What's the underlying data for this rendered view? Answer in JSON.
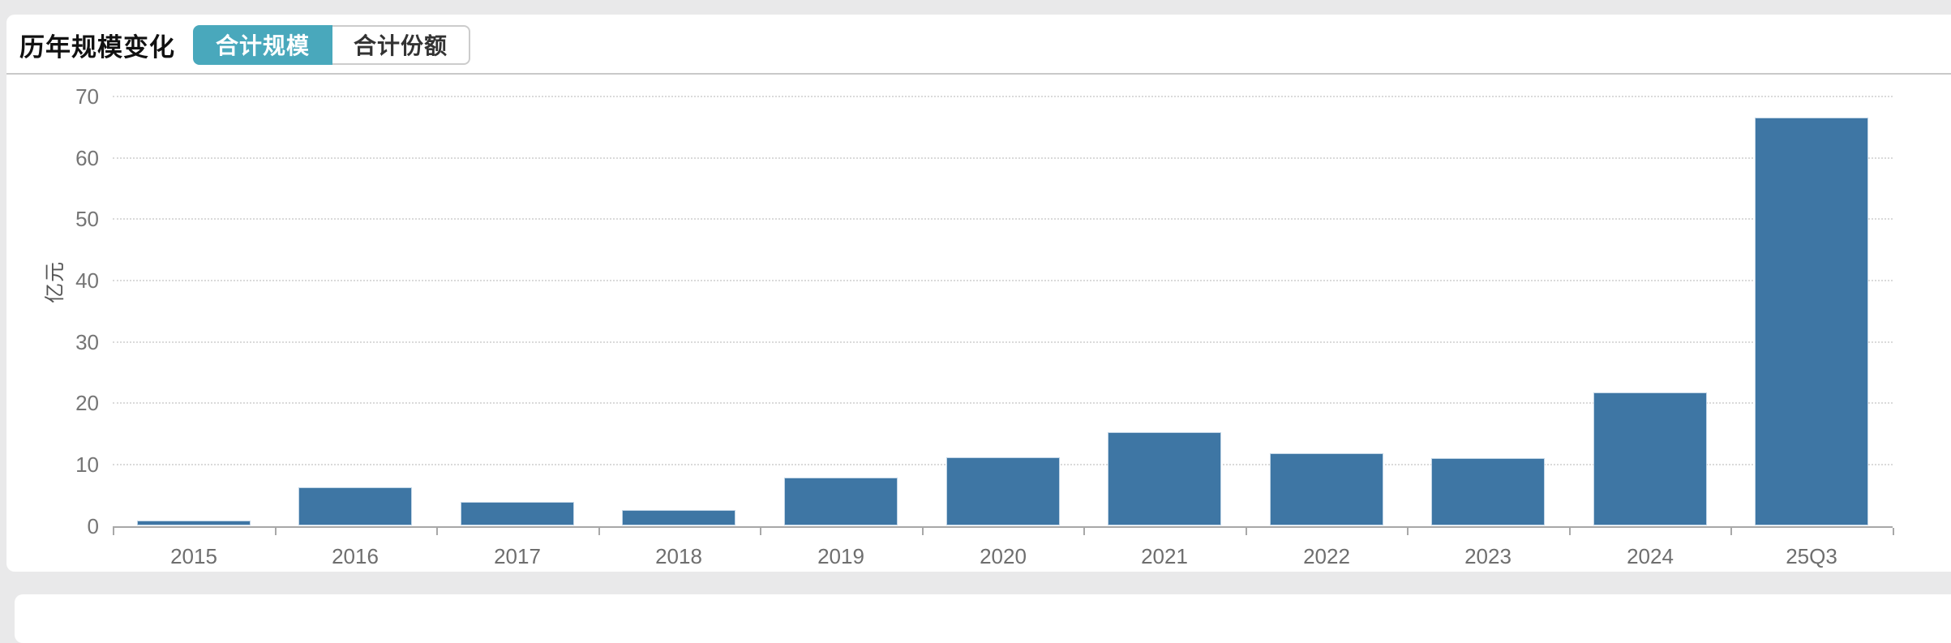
{
  "header": {
    "title": "历年规模变化",
    "tabs": [
      {
        "label": "合计规模",
        "active": true
      },
      {
        "label": "合计份额",
        "active": false
      }
    ],
    "active_tab_color": "#49a8bc"
  },
  "chart_data": {
    "type": "bar",
    "title": "历年规模变化 - 合计规模",
    "categories": [
      "2015",
      "2016",
      "2017",
      "2018",
      "2019",
      "2020",
      "2021",
      "2022",
      "2023",
      "2024",
      "25Q3"
    ],
    "values": [
      0.9,
      6.3,
      3.9,
      2.6,
      7.9,
      11.2,
      15.3,
      11.8,
      11.0,
      21.8,
      66.6
    ],
    "xlabel": "",
    "ylabel": "亿元",
    "ylim": [
      0,
      70
    ],
    "ytick_interval": 10,
    "yticks": [
      0,
      10,
      20,
      30,
      40,
      50,
      60,
      70
    ],
    "bar_color": "#3e76a4",
    "grid": "horizontal-dotted",
    "legend": "none"
  }
}
